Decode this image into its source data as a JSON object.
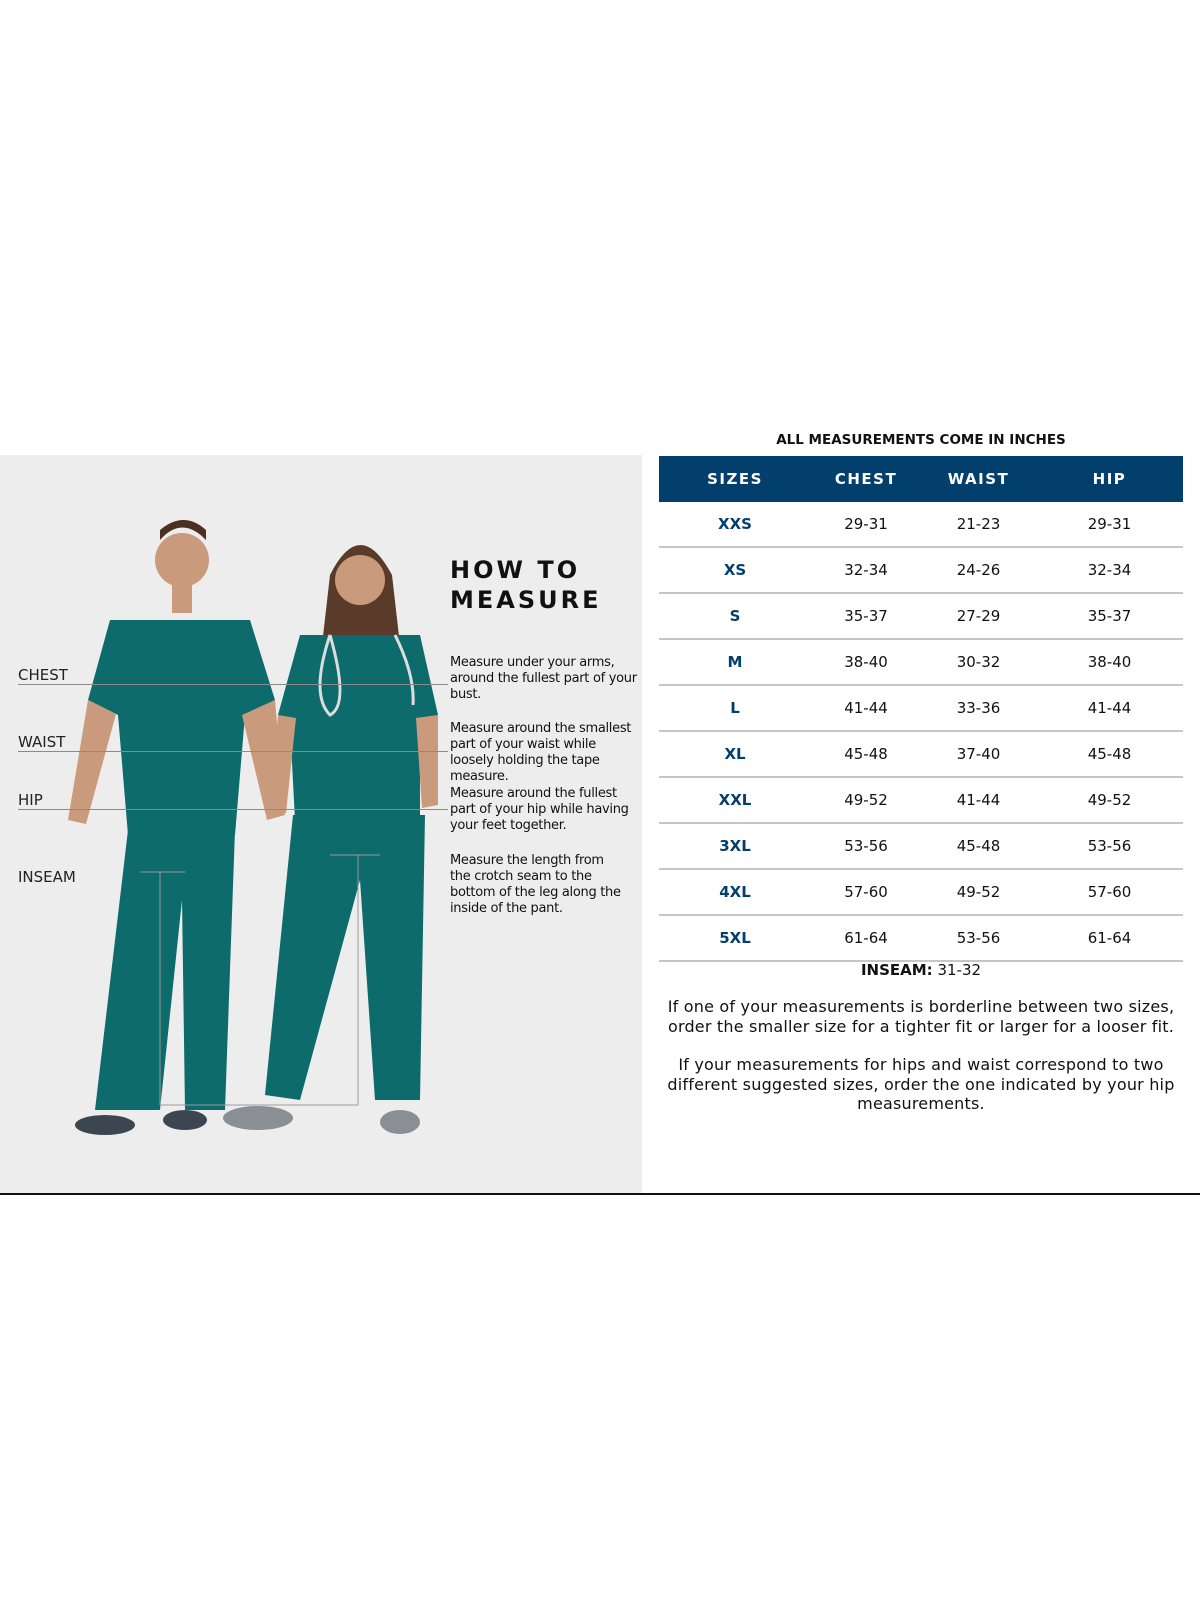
{
  "how_to_measure": {
    "heading": "HOW TO\nMEASURE",
    "labels": {
      "chest": "CHEST",
      "waist": "WAIST",
      "hip": "HIP",
      "inseam": "INSEAM"
    },
    "descriptions": {
      "chest": "Measure under your arms, around the fullest part of your bust.",
      "waist": "Measure around the smallest part of your waist while loosely holding the tape measure.",
      "hip": "Measure around the fullest part of your hip while having your feet together.",
      "inseam": "Measure the length from the crotch seam to the bottom of the leg along the inside of the pant."
    },
    "garment_color": "#0e6b6b"
  },
  "size_chart": {
    "caption": "ALL MEASUREMENTS COME IN INCHES",
    "header_color": "#033f6d",
    "columns": [
      "SIZES",
      "CHEST",
      "WAIST",
      "HIP"
    ],
    "rows": [
      [
        "XXS",
        "29-31",
        "21-23",
        "29-31"
      ],
      [
        "XS",
        "32-34",
        "24-26",
        "32-34"
      ],
      [
        "S",
        "35-37",
        "27-29",
        "35-37"
      ],
      [
        "M",
        "38-40",
        "30-32",
        "38-40"
      ],
      [
        "L",
        "41-44",
        "33-36",
        "41-44"
      ],
      [
        "XL",
        "45-48",
        "37-40",
        "45-48"
      ],
      [
        "XXL",
        "49-52",
        "41-44",
        "49-52"
      ],
      [
        "3XL",
        "53-56",
        "45-48",
        "53-56"
      ],
      [
        "4XL",
        "57-60",
        "49-52",
        "57-60"
      ],
      [
        "5XL",
        "61-64",
        "53-56",
        "61-64"
      ]
    ],
    "inseam_label": "INSEAM:",
    "inseam_value": "31-32",
    "notes": [
      "If one of your measurements is borderline between two sizes, order the smaller size for a tighter fit or larger for a looser fit.",
      "If your measurements for hips and waist correspond to two different suggested sizes, order the one indicated by your hip measurements."
    ]
  }
}
